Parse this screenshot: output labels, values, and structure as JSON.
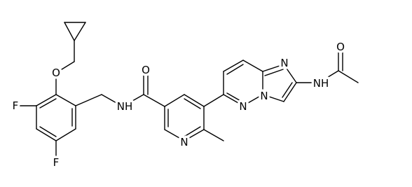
{
  "atom_labels": [
    "O",
    "F",
    "F",
    "O",
    "NH",
    "N",
    "N",
    "N",
    "N",
    "NH",
    "O"
  ]
}
